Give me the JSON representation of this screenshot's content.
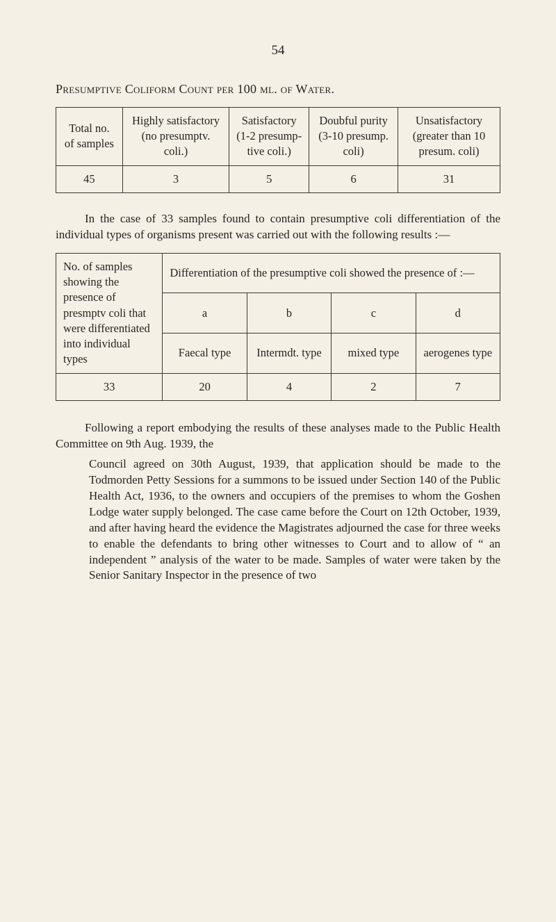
{
  "page_number": "54",
  "title": "Presumptive Coliform Count per 100 ml. of Water.",
  "table1": {
    "cols": [
      "Total no. of samples",
      "Highly sat­isfactory (no presumptv. coli.)",
      "Satisfac­tory (1-2 presump­tive coli.)",
      "Doubful purity (3-10 pres­ump. coli)",
      "Unsatisfac­tory (great­er than 10 presum. coli)"
    ],
    "row": [
      "45",
      "3",
      "5",
      "6",
      "31"
    ]
  },
  "para1": "In the case of 33 samples found to contain presump­tive coli differentiation of the individual types of organ­isms present was carried out with the following results :—",
  "table2": {
    "left_label": "No. of sam­ples showing the presence of presmptv coli that were differ­entiated in­to individ­ual types",
    "banner": "Differentiation of the presumptive coli showed the presence of :—",
    "letters": [
      "a",
      "b",
      "c",
      "d"
    ],
    "types": [
      "Faecal type",
      "Intermdt. type",
      "mixed type",
      "aerogenes type"
    ],
    "totals_left": "33",
    "totals": [
      "20",
      "4",
      "2",
      "7"
    ]
  },
  "para2_a": "Following a report embodying the results of these analyses made to the Public Health Committee on 9th Aug. 1939, the",
  "para2_b": "Council agreed on 30th August, 1939, that ap­plication should be made to the Todmorden Petty Sessions for a summons to be issued under Section 140 of the Public Health Act, 1936, to the owners and occupiers of the premises to whom the Goshen Lodge water supply belonged. The case came before the Court on 12th October, 1939, and after having heard the evidence the Magistrates adjourned the case for three weeks to en­able the defendants to bring other witnesses to Court and to allow of “ an independent ” analysis of the water to be made. Samples of water were taken by the Senior Sanitary Inspector in the presence of two",
  "colors": {
    "bg": "#f4f0e6",
    "fg": "#262420",
    "rule": "#3b3833"
  }
}
